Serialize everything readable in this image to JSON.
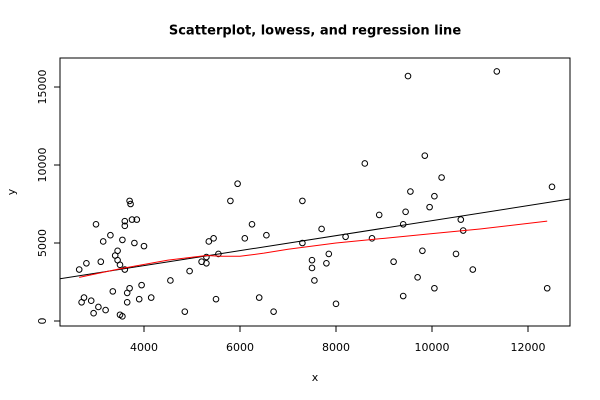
{
  "chart_data": {
    "type": "scatter",
    "title": "Scatterplot, lowess, and regression line",
    "x_label": "x",
    "y_label": "y",
    "xlim": [
      2250,
      12875
    ],
    "ylim": [
      -320,
      16860
    ],
    "xticks": [
      4000,
      6000,
      8000,
      10000,
      12000
    ],
    "yticks": [
      0,
      5000,
      10000,
      15000
    ],
    "series": [
      {
        "style": "points",
        "color": "#000000",
        "x": [
          2650,
          2700,
          2750,
          2800,
          2900,
          2950,
          3000,
          3050,
          3100,
          3150,
          3200,
          3300,
          3350,
          3400,
          3450,
          3450,
          3500,
          3500,
          3550,
          3550,
          3600,
          3600,
          3600,
          3650,
          3650,
          3700,
          3700,
          3720,
          3750,
          3800,
          3850,
          3900,
          3950,
          4000,
          4150,
          4550,
          4850,
          4950,
          5200,
          5300,
          5300,
          5350,
          5450,
          5500,
          5550,
          5800,
          5950,
          6100,
          6250,
          6400,
          6550,
          6700,
          7300,
          7300,
          7500,
          7500,
          7550,
          7700,
          7800,
          7850,
          8000,
          8200,
          8600,
          8750,
          8900,
          9200,
          9400,
          9400,
          9450,
          9500,
          9550,
          9700,
          9800,
          9850,
          9950,
          10050,
          10050,
          10200,
          10500,
          10600,
          10650,
          10850,
          11350,
          12400,
          12500
        ],
        "values": [
          3300,
          1200,
          1500,
          3700,
          1300,
          500,
          6200,
          900,
          3800,
          5100,
          700,
          5500,
          1900,
          4200,
          3900,
          4500,
          3600,
          400,
          5200,
          300,
          6400,
          6100,
          3300,
          1200,
          1800,
          2100,
          7700,
          7500,
          6500,
          5000,
          6500,
          1400,
          2300,
          4800,
          1500,
          2600,
          600,
          3200,
          3800,
          3700,
          4100,
          5100,
          5300,
          1400,
          4300,
          7700,
          8800,
          5300,
          6200,
          1500,
          5500,
          600,
          5000,
          7700,
          3900,
          3400,
          2600,
          5900,
          3700,
          4300,
          1100,
          5400,
          10100,
          5300,
          6800,
          3800,
          6200,
          1600,
          7000,
          15700,
          8300,
          2800,
          4500,
          10600,
          7300,
          2100,
          8000,
          9200,
          4300,
          6500,
          5800,
          3300,
          16000,
          2100,
          8600
        ]
      },
      {
        "style": "line",
        "color": "#000000",
        "x": [
          2250,
          12875
        ],
        "values": [
          2707,
          7818
        ]
      },
      {
        "style": "line",
        "color": "#ff0000",
        "x": [
          2650,
          3500,
          4500,
          5300,
          5600,
          6000,
          6500,
          7000,
          8000,
          9000,
          10000,
          11000,
          12400
        ],
        "values": [
          2800,
          3350,
          3900,
          4200,
          4150,
          4150,
          4350,
          4600,
          5000,
          5300,
          5600,
          5900,
          6400
        ]
      }
    ]
  }
}
